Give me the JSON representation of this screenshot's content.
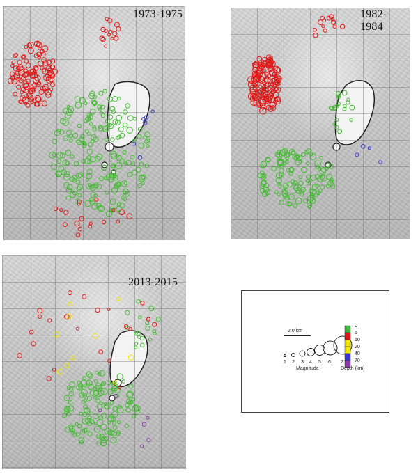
{
  "panels": [
    {
      "id": "p1",
      "period": "1973-1975"
    },
    {
      "id": "p2",
      "period": "1982-1984"
    },
    {
      "id": "p3",
      "period": "2013-2015"
    }
  ],
  "legend": {
    "scale_label": "2.0 km",
    "magnitude_ticks": [
      "1",
      "2",
      "3",
      "4",
      "5",
      "6",
      "7"
    ],
    "magnitude_title": "Magnitude",
    "depth_ticks": [
      "0",
      "5",
      "10",
      "20",
      "40",
      "70"
    ],
    "depth_title": "Depth (km)",
    "depth_colors": [
      "#3cb53c",
      "#e01818",
      "#f2e600",
      "#f2e600",
      "#3a3ad0",
      "#8a3aa8"
    ]
  },
  "colors": {
    "shallow_green": "#44bb33",
    "red": "#e01818",
    "yellow": "#f2e600",
    "blue": "#3a3ad0",
    "purple": "#8a3aa8"
  }
}
